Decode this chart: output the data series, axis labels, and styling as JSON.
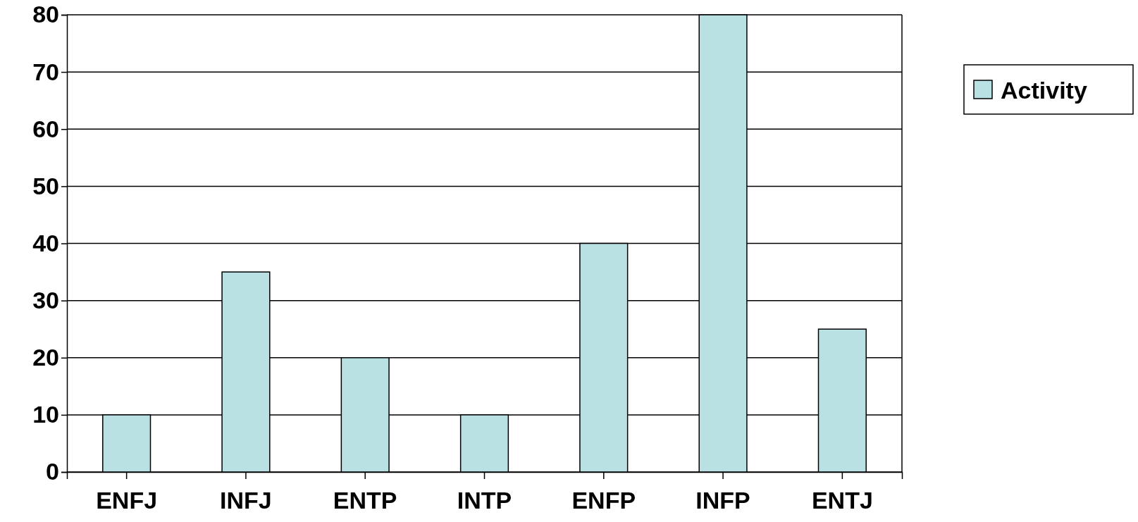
{
  "chart_data": {
    "type": "bar",
    "categories": [
      "ENFJ",
      "INFJ",
      "ENTP",
      "INTP",
      "ENFP",
      "INFP",
      "ENTJ"
    ],
    "series": [
      {
        "name": "Activity",
        "color": "#b9e0e3",
        "values": [
          10,
          35,
          20,
          10,
          40,
          80,
          25
        ]
      }
    ],
    "ylim": [
      0,
      80
    ],
    "yticks": [
      0,
      10,
      20,
      30,
      40,
      50,
      60,
      70,
      80
    ],
    "grid": "y",
    "legend": "right"
  }
}
